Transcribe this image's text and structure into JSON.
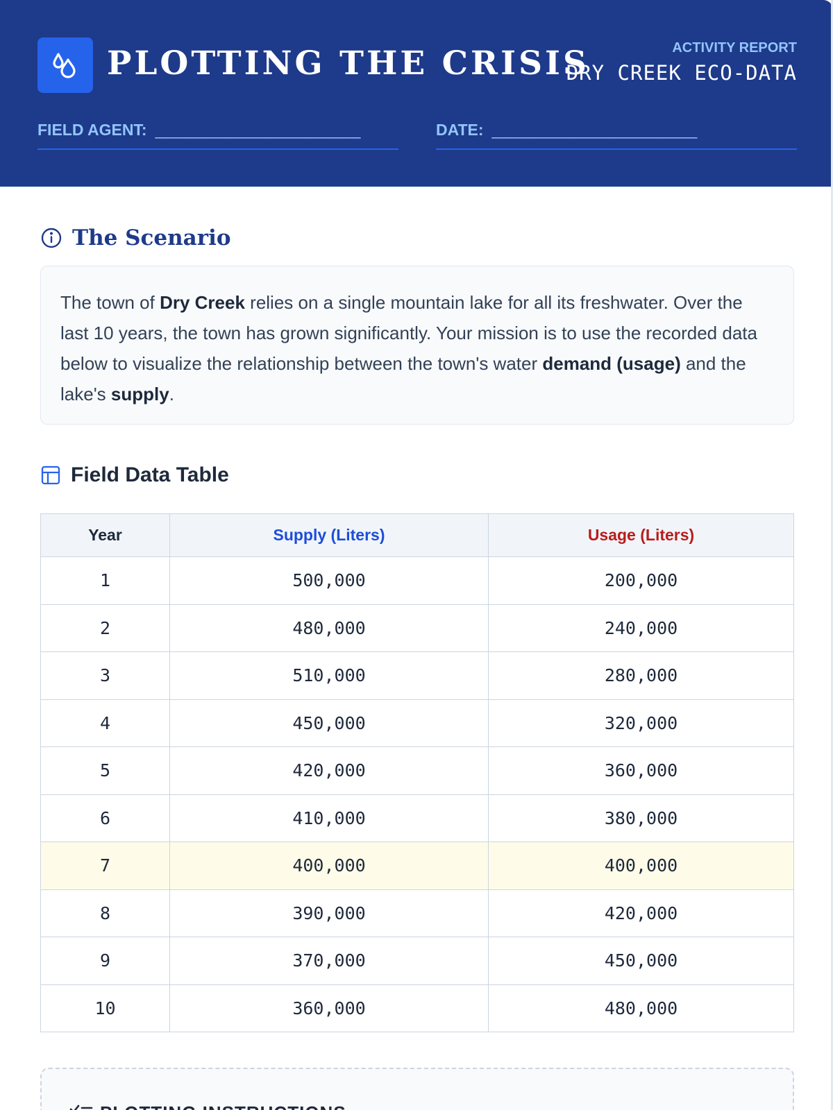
{
  "header": {
    "title": "PLOTTING THE CRISIS",
    "report_label": "ACTIVITY REPORT",
    "report_subtitle": "DRY CREEK ECO-DATA",
    "field_agent_label": "FIELD AGENT:",
    "date_label": "DATE:",
    "blank_line": "_________________________",
    "logo_icon": "water-drops-icon"
  },
  "scenario": {
    "heading": "The Scenario",
    "icon": "info-icon",
    "text_1": "The town of ",
    "town": "Dry Creek",
    "text_2": " relies on a single mountain lake for all its freshwater. Over the last 10 years, the town has grown significantly. Your mission is to use the recorded data below to visualize the relationship between the town's water ",
    "demand": "demand (usage)",
    "text_3": " and the lake's ",
    "supply": "supply",
    "text_4": "."
  },
  "table": {
    "heading": "Field Data Table",
    "icon": "table-icon",
    "columns": [
      "Year",
      "Supply (Liters)",
      "Usage (Liters)"
    ],
    "rows": [
      [
        "1",
        "500,000",
        "200,000"
      ],
      [
        "2",
        "480,000",
        "240,000"
      ],
      [
        "3",
        "510,000",
        "280,000"
      ],
      [
        "4",
        "450,000",
        "320,000"
      ],
      [
        "5",
        "420,000",
        "360,000"
      ],
      [
        "6",
        "410,000",
        "380,000"
      ],
      [
        "7",
        "400,000",
        "400,000"
      ],
      [
        "8",
        "390,000",
        "420,000"
      ],
      [
        "9",
        "370,000",
        "450,000"
      ],
      [
        "10",
        "360,000",
        "480,000"
      ]
    ],
    "highlighted_row": 7
  },
  "instructions": {
    "heading": "PLOTTING INSTRUCTIONS",
    "icon": "checklist-icon"
  },
  "colors": {
    "header_bg": "#1e3a8a",
    "accent_blue": "#2563eb",
    "supply_color": "#1d4ed8",
    "usage_color": "#b91c1c",
    "highlight_row": "#fefce8"
  }
}
